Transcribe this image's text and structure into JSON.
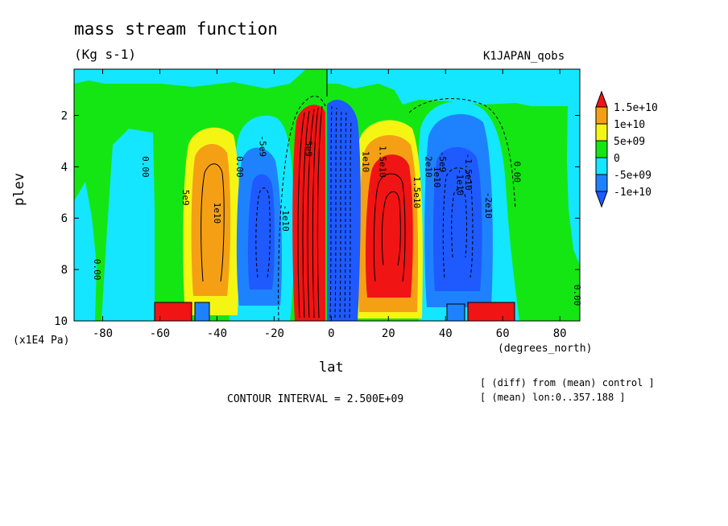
{
  "chart_data": {
    "type": "heatmap",
    "title": "mass stream function",
    "units": "(Kg s-1)",
    "dataset_label": "K1JAPAN_qobs",
    "xlabel": "lat",
    "x_unit": "(degrees_north)",
    "ylabel": "plev",
    "y_unit": "(x1E4 Pa)",
    "xlim": [
      -90,
      87
    ],
    "ylim": [
      10,
      0.2
    ],
    "x_ticks": [
      -80,
      -60,
      -40,
      -20,
      0,
      20,
      40,
      60,
      80
    ],
    "y_ticks": [
      2,
      4,
      6,
      8,
      10
    ],
    "contour_interval": "CONTOUR INTERVAL = 2.500E+09",
    "notes": [
      "[ (diff) from (mean) control ]",
      "[ (mean) lon:0..357.188 ]"
    ],
    "legend": [
      {
        "label": "1.5e+10",
        "color": "#f0191e"
      },
      {
        "label": "1e+10",
        "color": "#f5a014"
      },
      {
        "label": "5e+09",
        "color": "#f5f514"
      },
      {
        "label": "0",
        "color": "#14e614"
      },
      {
        "label": "-5e+09",
        "color": "#14e6ff"
      },
      {
        "label": "-1e+10",
        "color": "#1e82ff"
      }
    ],
    "legend_extra_colors": {
      "top": "#f01414",
      "bottom": "#1e5aff"
    },
    "contour_labels": [
      {
        "text": "0.00",
        "lat": -83,
        "plev": 8.0
      },
      {
        "text": "0.00",
        "lat": -66,
        "plev": 4.0
      },
      {
        "text": "5e9",
        "lat": -52,
        "plev": 5.2
      },
      {
        "text": "1e10",
        "lat": -41,
        "plev": 5.8
      },
      {
        "text": "0.00",
        "lat": -33,
        "plev": 4.0
      },
      {
        "text": "-5e9",
        "lat": -25,
        "plev": 3.2
      },
      {
        "text": "-1e10",
        "lat": -17,
        "plev": 6.0
      },
      {
        "text": "5e9",
        "lat": -9,
        "plev": 3.3
      },
      {
        "text": "1e10",
        "lat": 11,
        "plev": 3.8
      },
      {
        "text": "1.5e10",
        "lat": 17,
        "plev": 3.8
      },
      {
        "text": "1.5e10",
        "lat": 29,
        "plev": 5.0
      },
      {
        "text": "2e10",
        "lat": 33,
        "plev": 4.0
      },
      {
        "text": "1e10",
        "lat": 36,
        "plev": 4.4
      },
      {
        "text": "-5e9",
        "lat": 38,
        "plev": 3.8
      },
      {
        "text": "-1e10",
        "lat": 44,
        "plev": 4.6
      },
      {
        "text": "-1.5e10",
        "lat": 47,
        "plev": 4.2
      },
      {
        "text": "-2e10",
        "lat": 54,
        "plev": 5.5
      },
      {
        "text": "0.00",
        "lat": 64,
        "plev": 4.2
      },
      {
        "text": "0.00",
        "lat": 85,
        "plev": 9.0
      }
    ]
  }
}
